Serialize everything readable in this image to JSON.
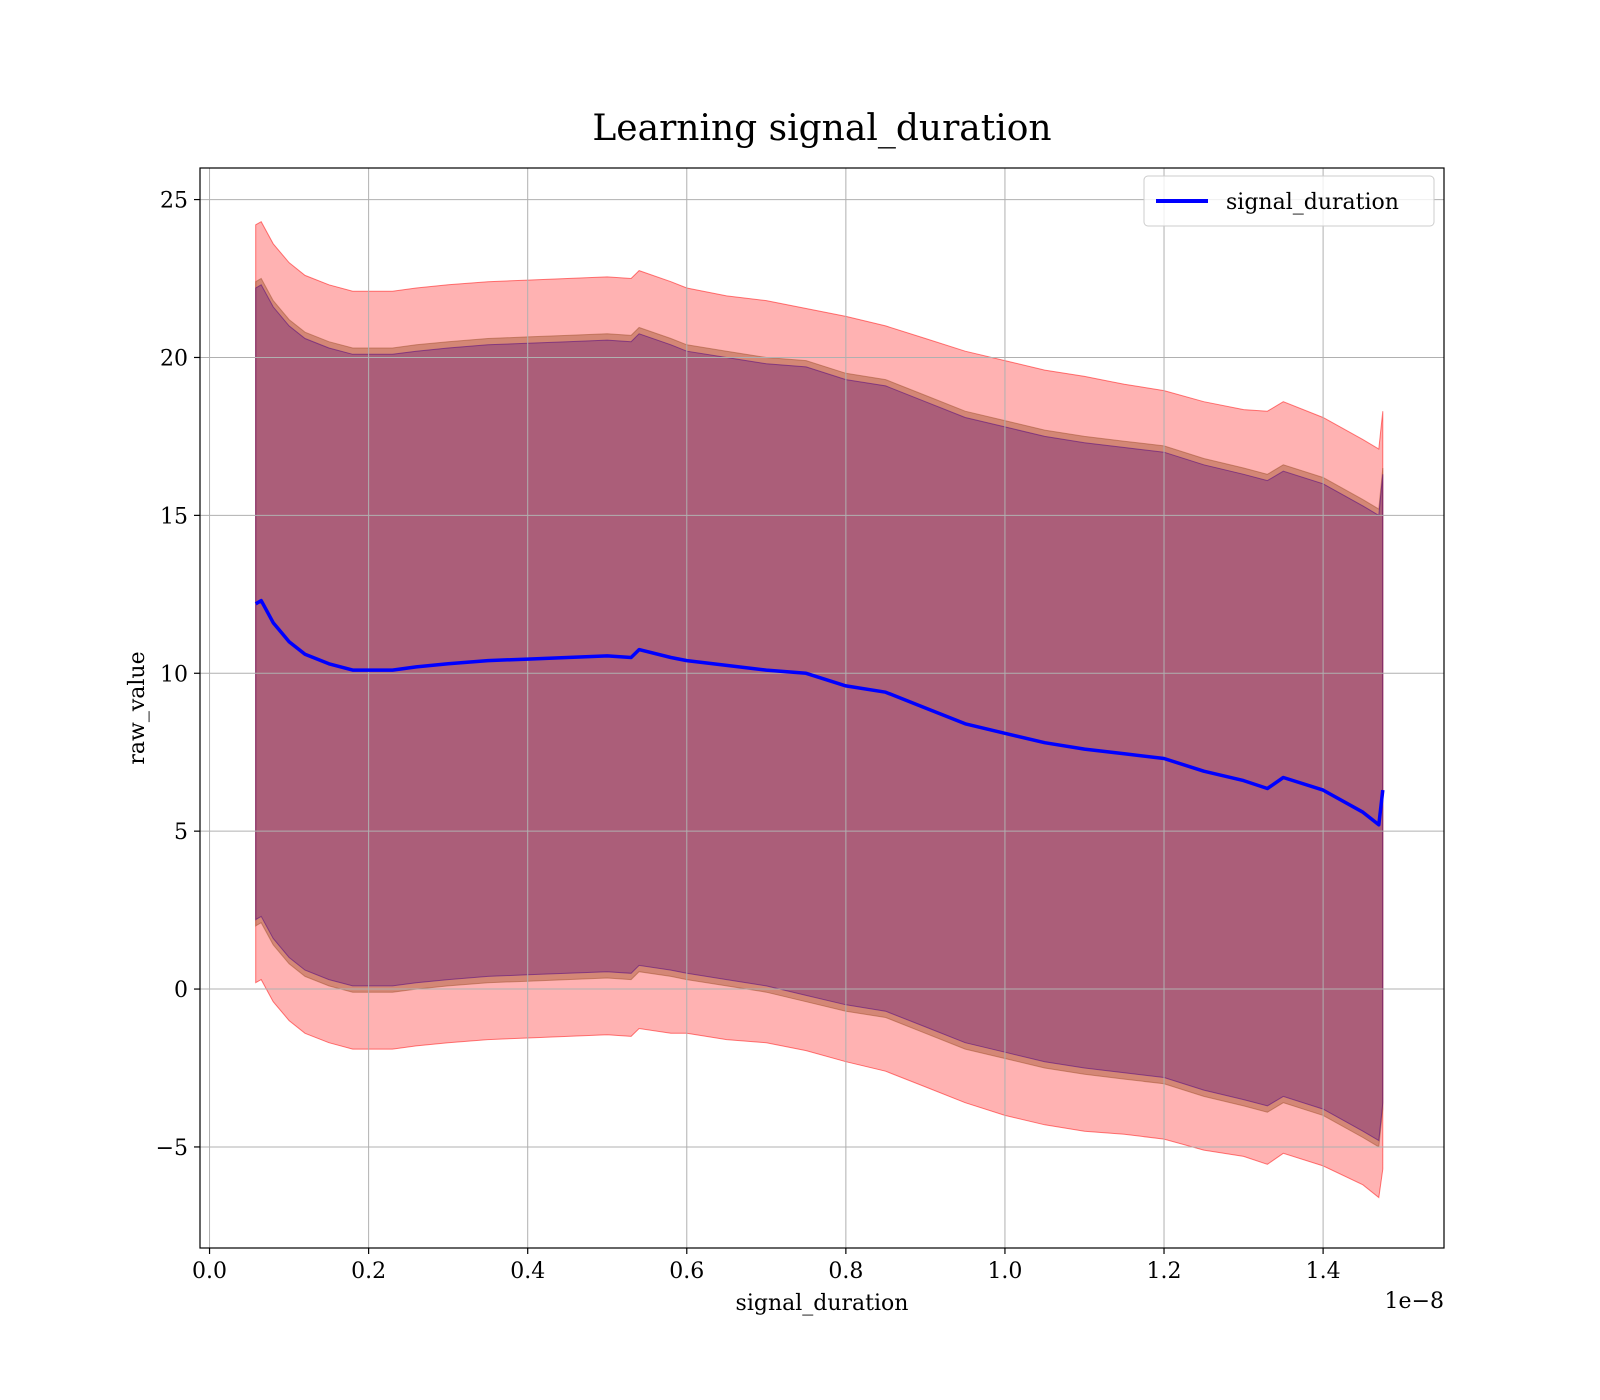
{
  "chart_data": {
    "type": "line",
    "title": "Learning signal_duration",
    "xlabel": "signal_duration",
    "ylabel": "raw_value",
    "x_offset_text": "1e−8",
    "xlim": [
      -0.012,
      1.552
    ],
    "ylim": [
      -8.2,
      26.0
    ],
    "x_ticks": [
      0.0,
      0.2,
      0.4,
      0.6,
      0.8,
      1.0,
      1.2,
      1.4
    ],
    "x_tick_labels": [
      "0.0",
      "0.2",
      "0.4",
      "0.6",
      "0.8",
      "1.0",
      "1.2",
      "1.4"
    ],
    "y_ticks": [
      -5,
      0,
      5,
      10,
      15,
      20,
      25
    ],
    "y_tick_labels": [
      "−5",
      "0",
      "5",
      "10",
      "15",
      "20",
      "25"
    ],
    "grid": true,
    "legend": {
      "position": "upper right",
      "entries": [
        "signal_duration"
      ]
    },
    "colors": {
      "mean_line": "#0000ff",
      "outer_band": "#ff0000",
      "middle_band": "#a0522d",
      "inner_band": "#4b0082"
    },
    "x": [
      0.058,
      0.065,
      0.08,
      0.1,
      0.12,
      0.15,
      0.18,
      0.2,
      0.23,
      0.26,
      0.3,
      0.35,
      0.4,
      0.45,
      0.5,
      0.53,
      0.54,
      0.58,
      0.6,
      0.65,
      0.7,
      0.75,
      0.8,
      0.85,
      0.9,
      0.95,
      1.0,
      1.05,
      1.1,
      1.15,
      1.2,
      1.25,
      1.3,
      1.33,
      1.35,
      1.4,
      1.45,
      1.47,
      1.475
    ],
    "series": [
      {
        "name": "signal_duration",
        "values": [
          12.2,
          12.3,
          11.6,
          11.0,
          10.6,
          10.3,
          10.1,
          10.1,
          10.1,
          10.2,
          10.3,
          10.4,
          10.45,
          10.5,
          10.55,
          10.5,
          10.75,
          10.5,
          10.4,
          10.25,
          10.1,
          10.0,
          9.6,
          9.4,
          8.9,
          8.4,
          8.1,
          7.8,
          7.6,
          7.45,
          7.3,
          6.9,
          6.6,
          6.35,
          6.7,
          6.3,
          5.6,
          5.2,
          6.3
        ]
      }
    ],
    "bands": [
      {
        "label": "outer",
        "upper": [
          24.2,
          24.3,
          23.6,
          23.0,
          22.6,
          22.3,
          22.1,
          22.1,
          22.1,
          22.2,
          22.3,
          22.4,
          22.45,
          22.5,
          22.55,
          22.5,
          22.75,
          22.4,
          22.2,
          21.95,
          21.8,
          21.55,
          21.3,
          21.0,
          20.6,
          20.2,
          19.9,
          19.6,
          19.4,
          19.15,
          18.95,
          18.6,
          18.35,
          18.3,
          18.6,
          18.1,
          17.4,
          17.1,
          18.3
        ],
        "lower": [
          0.2,
          0.3,
          -0.4,
          -1.0,
          -1.4,
          -1.7,
          -1.9,
          -1.9,
          -1.9,
          -1.8,
          -1.7,
          -1.6,
          -1.55,
          -1.5,
          -1.45,
          -1.5,
          -1.25,
          -1.4,
          -1.4,
          -1.6,
          -1.7,
          -1.95,
          -2.3,
          -2.6,
          -3.1,
          -3.6,
          -4.0,
          -4.3,
          -4.5,
          -4.6,
          -4.75,
          -5.1,
          -5.3,
          -5.55,
          -5.2,
          -5.6,
          -6.2,
          -6.6,
          -5.7
        ]
      },
      {
        "label": "middle",
        "upper": [
          22.4,
          22.5,
          21.8,
          21.2,
          20.8,
          20.5,
          20.3,
          20.3,
          20.3,
          20.4,
          20.5,
          20.6,
          20.65,
          20.7,
          20.75,
          20.7,
          20.95,
          20.6,
          20.4,
          20.2,
          20.0,
          19.9,
          19.5,
          19.3,
          18.8,
          18.3,
          18.0,
          17.7,
          17.5,
          17.35,
          17.2,
          16.8,
          16.5,
          16.3,
          16.6,
          16.2,
          15.5,
          15.2,
          16.5
        ],
        "lower": [
          2.0,
          2.1,
          1.4,
          0.8,
          0.4,
          0.1,
          -0.1,
          -0.1,
          -0.1,
          0.0,
          0.1,
          0.2,
          0.25,
          0.3,
          0.35,
          0.3,
          0.55,
          0.4,
          0.3,
          0.1,
          -0.1,
          -0.4,
          -0.7,
          -0.9,
          -1.4,
          -1.9,
          -2.2,
          -2.5,
          -2.7,
          -2.85,
          -3.0,
          -3.4,
          -3.7,
          -3.9,
          -3.6,
          -4.0,
          -4.7,
          -5.0,
          -3.8
        ]
      },
      {
        "label": "inner",
        "upper": [
          22.2,
          22.3,
          21.6,
          21.0,
          20.6,
          20.3,
          20.1,
          20.1,
          20.1,
          20.2,
          20.3,
          20.4,
          20.45,
          20.5,
          20.55,
          20.5,
          20.75,
          20.4,
          20.2,
          20.0,
          19.8,
          19.7,
          19.3,
          19.1,
          18.6,
          18.1,
          17.8,
          17.5,
          17.3,
          17.15,
          17.0,
          16.6,
          16.3,
          16.1,
          16.4,
          16.0,
          15.3,
          15.0,
          16.3
        ],
        "lower": [
          2.2,
          2.3,
          1.6,
          1.0,
          0.6,
          0.3,
          0.1,
          0.1,
          0.1,
          0.2,
          0.3,
          0.4,
          0.45,
          0.5,
          0.55,
          0.5,
          0.75,
          0.6,
          0.5,
          0.3,
          0.1,
          -0.2,
          -0.5,
          -0.7,
          -1.2,
          -1.7,
          -2.0,
          -2.3,
          -2.5,
          -2.65,
          -2.8,
          -3.2,
          -3.5,
          -3.7,
          -3.4,
          -3.8,
          -4.5,
          -4.8,
          -3.6
        ]
      }
    ]
  }
}
